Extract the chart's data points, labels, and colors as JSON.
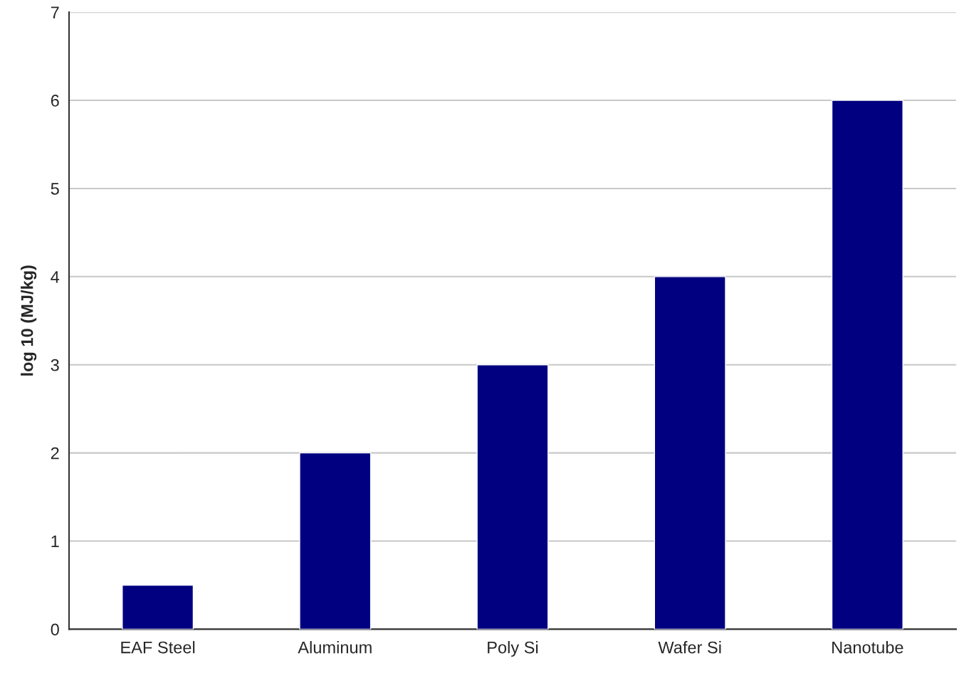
{
  "chart_data": {
    "type": "bar",
    "ylabel": "log 10 (MJ/kg)",
    "categories": [
      "EAF Steel",
      "Aluminum",
      "Poly Si",
      "Wafer Si",
      "Nanotube"
    ],
    "values": [
      0.5,
      2,
      3,
      4,
      6
    ],
    "color": "#000080",
    "ylim": [
      0,
      7
    ],
    "yticks": [
      0,
      1,
      2,
      3,
      4,
      5,
      6,
      7
    ],
    "grid": "y",
    "legend": false
  }
}
